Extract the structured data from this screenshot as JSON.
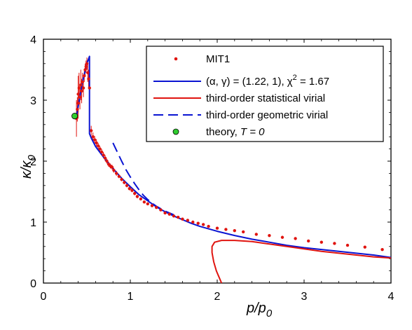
{
  "chart_data": {
    "type": "scatter",
    "xlabel": {
      "main": "p/p",
      "sub": "0"
    },
    "ylabel": {
      "main": "κ/κ",
      "sub": "0"
    },
    "xlim": [
      0,
      4
    ],
    "ylim": [
      0,
      4
    ],
    "xticks": [
      "0",
      "1",
      "2",
      "3",
      "4"
    ],
    "yticks": [
      "0",
      "1",
      "2",
      "3",
      "4"
    ],
    "legend_position": "top-right",
    "series": [
      {
        "name": "MIT1",
        "kind": "points",
        "color": "#e0140f",
        "x": [
          0.38,
          0.39,
          0.4,
          0.4,
          0.41,
          0.42,
          0.43,
          0.44,
          0.45,
          0.46,
          0.47,
          0.48,
          0.49,
          0.5,
          0.51,
          0.52,
          0.53,
          0.55,
          0.57,
          0.59,
          0.61,
          0.63,
          0.65,
          0.67,
          0.69,
          0.71,
          0.73,
          0.75,
          0.77,
          0.79,
          0.81,
          0.84,
          0.87,
          0.9,
          0.93,
          0.96,
          0.99,
          1.02,
          1.05,
          1.08,
          1.12,
          1.16,
          1.2,
          1.25,
          1.3,
          1.35,
          1.4,
          1.45,
          1.5,
          1.55,
          1.6,
          1.66,
          1.72,
          1.78,
          1.84,
          1.9,
          2.0,
          2.1,
          2.2,
          2.3,
          2.45,
          2.6,
          2.75,
          2.9,
          3.05,
          3.2,
          3.35,
          3.5,
          3.7,
          3.9
        ],
        "y": [
          2.7,
          2.85,
          2.95,
          3.1,
          3.2,
          3.05,
          3.25,
          3.15,
          3.3,
          3.2,
          3.4,
          3.5,
          3.55,
          3.6,
          3.45,
          3.35,
          3.2,
          2.5,
          2.4,
          2.35,
          2.3,
          2.25,
          2.2,
          2.15,
          2.1,
          2.05,
          2.0,
          1.95,
          1.92,
          1.9,
          1.85,
          1.8,
          1.75,
          1.7,
          1.65,
          1.6,
          1.55,
          1.52,
          1.47,
          1.42,
          1.38,
          1.33,
          1.3,
          1.27,
          1.24,
          1.2,
          1.15,
          1.13,
          1.1,
          1.08,
          1.05,
          1.03,
          1.0,
          0.98,
          0.96,
          0.93,
          0.9,
          0.88,
          0.86,
          0.84,
          0.8,
          0.78,
          0.75,
          0.73,
          0.69,
          0.67,
          0.65,
          0.62,
          0.59,
          0.55
        ],
        "yerr": [
          0.3,
          0.2,
          0.25,
          0.3,
          0.25,
          0.2,
          0.25,
          0.2,
          0.15,
          0.15,
          0.1,
          0.1,
          0.1,
          0.1,
          0.15,
          0.15,
          0.1,
          0.08,
          0.07,
          0.06,
          0.06,
          0.05,
          0.05,
          0.05,
          0.05,
          0.05,
          0.04,
          0.04,
          0.04,
          0.04,
          0.04,
          0.04,
          0.03,
          0.03,
          0.03,
          0.03,
          0.03,
          0.03,
          0.03,
          0.03,
          0.02,
          0.02,
          0.02,
          0.02,
          0.02,
          0.02,
          0.02,
          0.02,
          0.02,
          0.02,
          0.02,
          0.02,
          0.02,
          0.02,
          0.02,
          0.02,
          0.02,
          0.02,
          0.02,
          0.02,
          0.02,
          0.02,
          0.02,
          0.02,
          0.02,
          0.02,
          0.02,
          0.02,
          0.02,
          0.02
        ]
      },
      {
        "name": "(α, γ)  = (1.22, 1), χ² = 1.67",
        "kind": "line",
        "color": "#0a14d2",
        "dash": "solid",
        "x": [
          0.38,
          0.4,
          0.45,
          0.5,
          0.53,
          0.53,
          0.55,
          0.6,
          0.7,
          0.8,
          0.9,
          1.0,
          1.1,
          1.2,
          1.3,
          1.4,
          1.5,
          1.6,
          1.7,
          1.8,
          2.0,
          2.2,
          2.4,
          2.6,
          2.8,
          3.0,
          3.2,
          3.4,
          3.6,
          3.8,
          4.0
        ],
        "y": [
          2.73,
          2.9,
          3.3,
          3.6,
          3.72,
          2.45,
          2.38,
          2.24,
          2.05,
          1.88,
          1.72,
          1.58,
          1.45,
          1.35,
          1.25,
          1.17,
          1.1,
          1.04,
          0.98,
          0.93,
          0.85,
          0.78,
          0.72,
          0.67,
          0.62,
          0.58,
          0.55,
          0.52,
          0.49,
          0.46,
          0.42
        ]
      },
      {
        "name": "third-order statistical virial",
        "kind": "line",
        "color": "#e0140f",
        "dash": "solid",
        "x": [
          2.05,
          2.02,
          1.99,
          1.96,
          1.94,
          1.94,
          1.97,
          2.05,
          2.2,
          2.4,
          2.6,
          2.8,
          3.0,
          3.2,
          3.4,
          3.6,
          3.8,
          4.0
        ],
        "y": [
          0.0,
          0.1,
          0.2,
          0.35,
          0.5,
          0.6,
          0.67,
          0.7,
          0.7,
          0.68,
          0.64,
          0.6,
          0.56,
          0.52,
          0.49,
          0.46,
          0.43,
          0.41
        ]
      },
      {
        "name": "third-order geometric virial",
        "kind": "line",
        "color": "#0a14d2",
        "dash": "dashed",
        "x": [
          0.8,
          0.85,
          0.9,
          0.95,
          1.0,
          1.05,
          1.1,
          1.15,
          1.2,
          1.25,
          1.3,
          1.35,
          1.4,
          1.45,
          1.5
        ],
        "y": [
          2.3,
          2.15,
          2.0,
          1.86,
          1.74,
          1.63,
          1.53,
          1.44,
          1.37,
          1.31,
          1.26,
          1.22,
          1.18,
          1.15,
          1.12
        ]
      },
      {
        "name": "theory, T = 0",
        "kind": "marker",
        "color": "#2ecc2e",
        "x": [
          0.36
        ],
        "y": [
          2.74
        ]
      }
    ],
    "legend": [
      {
        "label": "MIT1",
        "style": "point"
      },
      {
        "label_main": "(α, γ)  = (1.22, 1), χ",
        "label_sup": "2",
        "label_tail": " = 1.67",
        "style": "solid-blue"
      },
      {
        "label": "third-order statistical virial",
        "style": "solid-red"
      },
      {
        "label": "third-order geometric virial",
        "style": "dashed-blue"
      },
      {
        "label_main": "theory, ",
        "label_italic": "T = 0",
        "style": "green-dot"
      }
    ]
  }
}
